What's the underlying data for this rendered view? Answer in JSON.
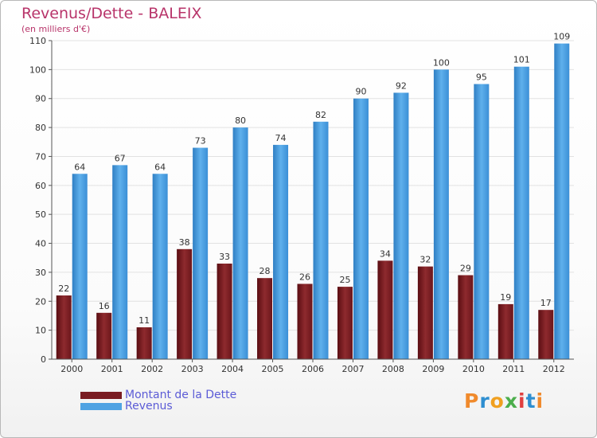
{
  "chart_data": {
    "type": "bar",
    "title": "Revenus/Dette - BALEIX",
    "subtitle": "(en milliers d'€)",
    "xlabel": "",
    "ylabel": "",
    "ylim": [
      0,
      110
    ],
    "yticks": [
      0,
      10,
      20,
      30,
      40,
      50,
      60,
      70,
      80,
      90,
      100,
      110
    ],
    "grid": true,
    "categories": [
      "2000",
      "2001",
      "2002",
      "2003",
      "2004",
      "2005",
      "2006",
      "2007",
      "2008",
      "2009",
      "2010",
      "2011",
      "2012"
    ],
    "series": [
      {
        "name": "Montant de la Dette",
        "color": "#7a1c22",
        "values": [
          22,
          16,
          11,
          38,
          33,
          28,
          26,
          25,
          34,
          32,
          29,
          19,
          17
        ]
      },
      {
        "name": "Revenus",
        "color": "#4fa3e3",
        "values": [
          64,
          67,
          64,
          73,
          80,
          74,
          82,
          90,
          92,
          100,
          95,
          101,
          109
        ]
      }
    ],
    "legend_position": "bottom-left"
  },
  "branding": {
    "logo_text": "Proxiti",
    "logo_colors": [
      "#f08a2c",
      "#2e8ed0",
      "#f0a020",
      "#4cae4c",
      "#e04040",
      "#2e8ed0",
      "#f08a2c"
    ]
  }
}
